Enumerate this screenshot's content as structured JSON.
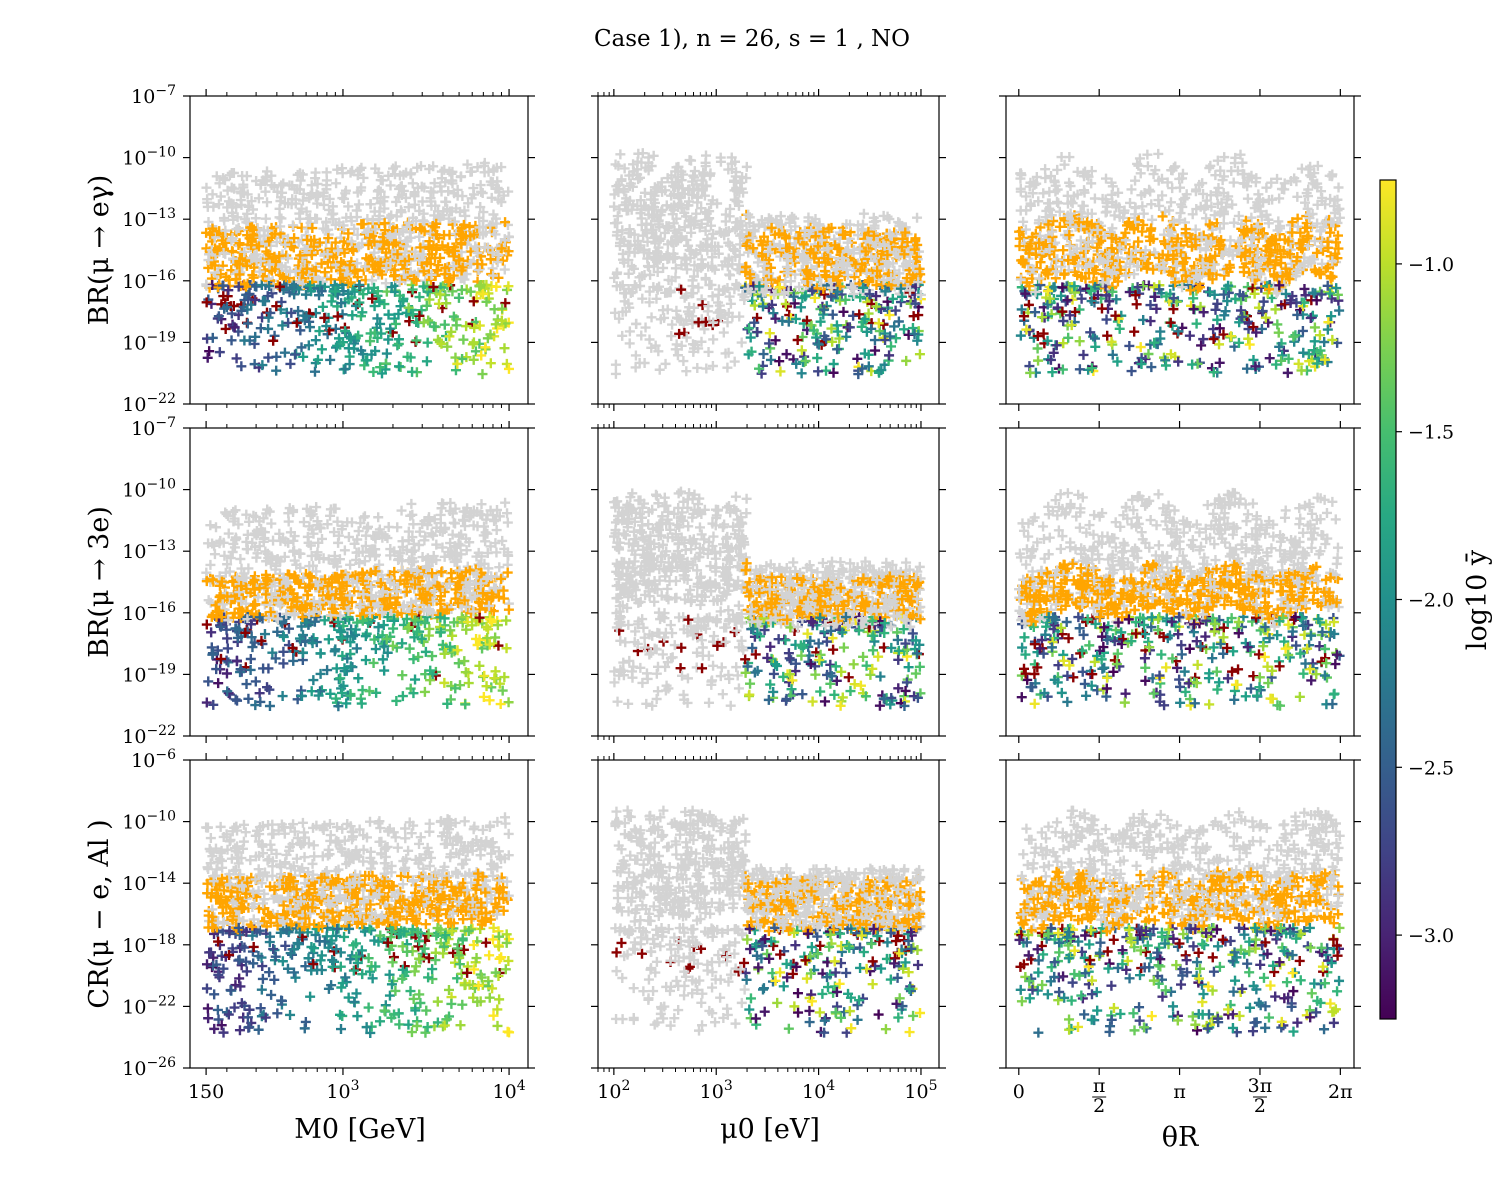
{
  "chart_data": {
    "type": "scatter",
    "title": "Case 1),  n = 26,  s = 1 , NO",
    "marker": "+",
    "colorbar": {
      "label": "log10 ȳ",
      "colormap": "viridis",
      "range": [
        -3.25,
        -0.75
      ],
      "ticks": [
        -3.0,
        -2.5,
        -2.0,
        -1.5,
        -1.0
      ],
      "tick_labels": [
        "−3.0",
        "−2.5",
        "−2.0",
        "−1.5",
        "−1.0"
      ]
    },
    "legend_colors": {
      "excluded": "#d3d3d3",
      "future_sensitivity": "#ffa500",
      "special": "#8b0000"
    },
    "columns": [
      {
        "xlabel": "M0 [GeV]",
        "xscale": "log",
        "xlim": [
          120,
          13000
        ],
        "ticks": [
          150,
          1000,
          10000
        ],
        "tick_labels": [
          "150",
          "10^3",
          "10^4"
        ]
      },
      {
        "xlabel": "μ0 [eV]",
        "xscale": "log",
        "xlim": [
          70,
          150000
        ],
        "ticks": [
          100,
          1000,
          10000,
          100000
        ],
        "tick_labels": [
          "10^2",
          "10^3",
          "10^4",
          "10^5"
        ]
      },
      {
        "xlabel": "θR",
        "xscale": "linear",
        "xlim": [
          -0.25,
          6.55
        ],
        "ticks": [
          0,
          1.5708,
          3.1416,
          4.7124,
          6.2832
        ],
        "tick_labels": [
          "0",
          "π/2",
          "π",
          "3π/2",
          "2π"
        ]
      }
    ],
    "rows": [
      {
        "ylabel": "BR(μ → eγ)",
        "yscale": "log",
        "ylim_exp": [
          -22,
          -7
        ],
        "tick_exps": [
          -22,
          -19,
          -16,
          -13,
          -10,
          -7
        ],
        "gray_band": [
          -16.2,
          -10.5
        ],
        "orange_band": [
          -16.2,
          -13.2
        ]
      },
      {
        "ylabel": "BR(μ → 3e)",
        "yscale": "log",
        "ylim_exp": [
          -22,
          -7
        ],
        "tick_exps": [
          -22,
          -19,
          -16,
          -13,
          -10,
          -7
        ],
        "gray_band": [
          -16.2,
          -10.8
        ],
        "orange_band": [
          -16.2,
          -14
        ]
      },
      {
        "ylabel": "CR(μ − e, Al )",
        "yscale": "log",
        "ylim_exp": [
          -26,
          -6
        ],
        "tick_exps": [
          -26,
          -22,
          -18,
          -14,
          -10,
          -6
        ],
        "gray_band": [
          -16.5,
          -10
        ],
        "orange_band": [
          -16.9,
          -13.5
        ]
      }
    ],
    "points_per_panel": 1300
  }
}
